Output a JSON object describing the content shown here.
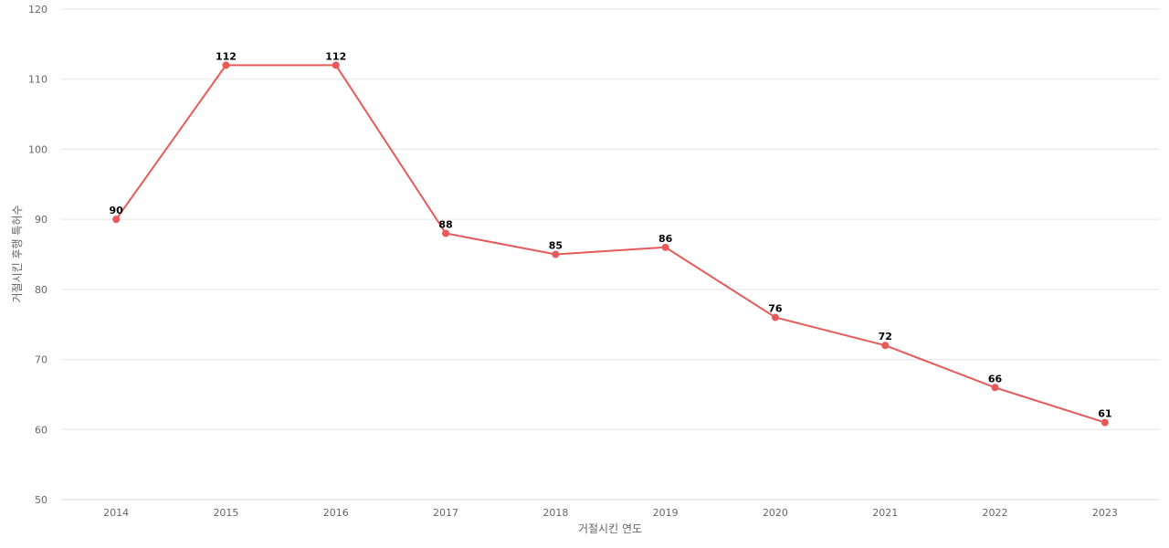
{
  "chart_data": {
    "type": "line",
    "title": "",
    "xlabel": "거절시킨 연도",
    "ylabel": "거절시킨 후행 특허수",
    "categories": [
      "2014",
      "2015",
      "2016",
      "2017",
      "2018",
      "2019",
      "2020",
      "2021",
      "2022",
      "2023"
    ],
    "series": [
      {
        "values": [
          90,
          112,
          112,
          88,
          85,
          86,
          76,
          72,
          66,
          61
        ],
        "color": "#e85a5a"
      }
    ],
    "ylim": [
      50,
      120
    ],
    "yticks": [
      50,
      60,
      70,
      80,
      90,
      100,
      110,
      120
    ],
    "grid": true,
    "data_labels": true
  }
}
